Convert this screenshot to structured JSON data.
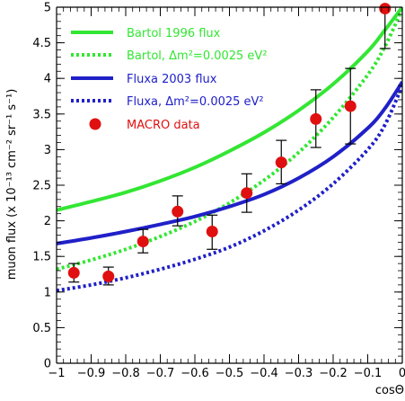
{
  "chart_data": {
    "type": "line",
    "title": "",
    "xlabel": "cosΘ",
    "ylabel": "muon flux (x 10⁻¹³ cm⁻² sr⁻¹ s⁻¹)",
    "xlim": [
      -1,
      0
    ],
    "ylim": [
      0,
      5
    ],
    "grid": false,
    "legend_position": "top-left",
    "x_ticks": [
      -1,
      -0.9,
      -0.8,
      -0.7,
      -0.6,
      -0.5,
      -0.4,
      -0.3,
      -0.2,
      -0.1,
      0
    ],
    "x_tick_labels": [
      "−1",
      "−0.9",
      "−0.8",
      "−0.7",
      "−0.6",
      "−0.5",
      "−0.4",
      "−0.3",
      "−0.2",
      "−0.1",
      "0"
    ],
    "y_ticks": [
      0,
      0.5,
      1,
      1.5,
      2,
      2.5,
      3,
      3.5,
      4,
      4.5,
      5
    ],
    "y_tick_labels": [
      "0",
      "0.5",
      "1",
      "1.5",
      "2",
      "2.5",
      "3",
      "3.5",
      "4",
      "4.5",
      "5"
    ],
    "series": [
      {
        "name": "Bartol 1996 flux",
        "style": "solid",
        "color": "#33e633",
        "x": [
          -1,
          -0.9,
          -0.8,
          -0.7,
          -0.6,
          -0.5,
          -0.4,
          -0.3,
          -0.2,
          -0.1,
          -0.05,
          0
        ],
        "y": [
          2.15,
          2.27,
          2.4,
          2.56,
          2.75,
          2.98,
          3.24,
          3.55,
          3.92,
          4.38,
          4.68,
          5.0
        ]
      },
      {
        "name": "Bartol, Δm²=0.0025 eV²",
        "style": "dotted",
        "color": "#33e633",
        "x": [
          -1,
          -0.9,
          -0.8,
          -0.7,
          -0.6,
          -0.5,
          -0.4,
          -0.3,
          -0.2,
          -0.1,
          -0.05,
          0
        ],
        "y": [
          1.32,
          1.45,
          1.6,
          1.78,
          1.99,
          2.25,
          2.57,
          2.96,
          3.45,
          4.05,
          4.45,
          4.98
        ]
      },
      {
        "name": "Fluxa 2003 flux",
        "style": "solid",
        "color": "#2020c8",
        "x": [
          -1,
          -0.9,
          -0.8,
          -0.7,
          -0.6,
          -0.5,
          -0.4,
          -0.3,
          -0.2,
          -0.1,
          -0.05,
          0
        ],
        "y": [
          1.68,
          1.76,
          1.85,
          1.95,
          2.06,
          2.2,
          2.37,
          2.6,
          2.9,
          3.3,
          3.58,
          3.95
        ]
      },
      {
        "name": "Fluxa, Δm²=0.0025 eV²",
        "style": "dotted",
        "color": "#2020c8",
        "x": [
          -1,
          -0.9,
          -0.8,
          -0.7,
          -0.6,
          -0.5,
          -0.4,
          -0.3,
          -0.2,
          -0.1,
          -0.05,
          0
        ],
        "y": [
          1.02,
          1.1,
          1.2,
          1.32,
          1.46,
          1.63,
          1.86,
          2.15,
          2.52,
          3.0,
          3.35,
          3.9
        ]
      }
    ],
    "points": {
      "name": "MACRO data",
      "color": "#e01010",
      "x": [
        -0.95,
        -0.85,
        -0.75,
        -0.65,
        -0.55,
        -0.45,
        -0.35,
        -0.25,
        -0.15,
        -0.05
      ],
      "y": [
        1.27,
        1.22,
        1.71,
        2.13,
        1.85,
        2.39,
        2.82,
        3.43,
        3.61,
        4.98
      ],
      "err_low": [
        1.14,
        1.1,
        1.55,
        1.93,
        1.6,
        2.12,
        2.52,
        3.03,
        3.08,
        4.42
      ],
      "err_high": [
        1.4,
        1.35,
        1.88,
        2.35,
        2.08,
        2.66,
        3.13,
        3.84,
        4.14,
        5.0
      ]
    }
  },
  "colors": {
    "background": "#ffffff",
    "axis": "#000000",
    "legend_text_green": "#33e633",
    "legend_text_blue": "#2020c8",
    "legend_text_red": "#e01010"
  }
}
